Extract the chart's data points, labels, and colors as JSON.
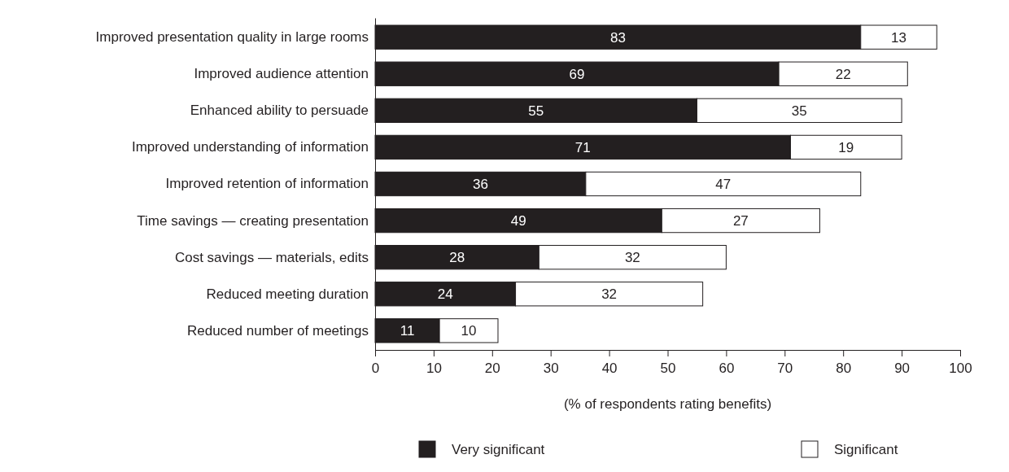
{
  "chart_data": {
    "type": "bar",
    "orientation": "horizontal",
    "stacked": true,
    "data_labels": true,
    "legend": "bottom",
    "grid": false,
    "xlabel": "(% of respondents rating benefits)",
    "categories": [
      "Improved presentation quality in large rooms",
      "Improved audience attention",
      "Enhanced ability to persuade",
      "Improved understanding of information",
      "Improved retention of information",
      "Time savings — creating presentation",
      "Cost savings — materials, edits",
      "Reduced meeting duration",
      "Reduced number of meetings"
    ],
    "series": [
      {
        "name": "Very significant",
        "color": "#231f20",
        "values": [
          83,
          69,
          55,
          71,
          36,
          49,
          28,
          24,
          11
        ]
      },
      {
        "name": "Significant",
        "color": "#ffffff",
        "values": [
          13,
          22,
          35,
          19,
          47,
          27,
          32,
          32,
          10
        ]
      }
    ],
    "xlim": [
      0,
      100
    ],
    "xticks": [
      0,
      10,
      20,
      30,
      40,
      50,
      60,
      70,
      80,
      90,
      100
    ]
  }
}
